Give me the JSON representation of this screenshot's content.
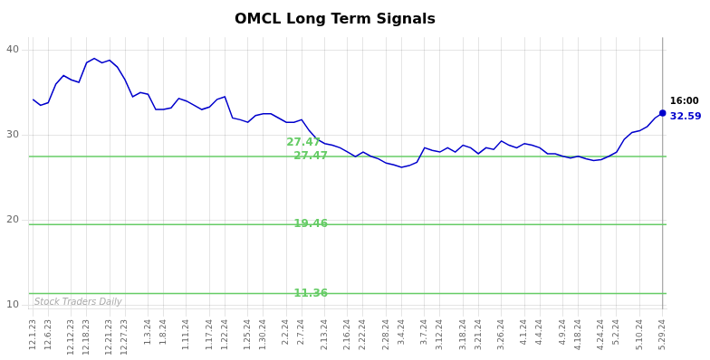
{
  "chart_data": {
    "type": "line",
    "title": "OMCL Long Term Signals",
    "categories": [
      "12.1.23",
      null,
      "12.6.23",
      null,
      null,
      "12.12.23",
      null,
      "12.18.23",
      null,
      null,
      "12.21.23",
      null,
      "12.27.23",
      null,
      null,
      "1.3.24",
      null,
      "1.8.24",
      null,
      null,
      "1.11.24",
      null,
      null,
      "1.17.24",
      null,
      "1.22.24",
      null,
      null,
      "1.25.24",
      null,
      "1.30.24",
      null,
      null,
      "2.2.24",
      null,
      "2.7.24",
      null,
      null,
      "2.13.24",
      null,
      null,
      "2.16.24",
      null,
      "2.22.24",
      null,
      null,
      "2.28.24",
      null,
      "3.4.24",
      null,
      null,
      "3.7.24",
      null,
      "3.12.24",
      null,
      null,
      "3.18.24",
      null,
      "3.21.24",
      null,
      null,
      "3.26.24",
      null,
      null,
      "4.1.24",
      null,
      "4.4.24",
      null,
      null,
      "4.9.24",
      null,
      "4.18.24",
      null,
      null,
      "4.24.24",
      null,
      "5.2.24",
      null,
      null,
      "5.10.24",
      null,
      null,
      "5.29.24"
    ],
    "series": [
      {
        "color": "#0000cc",
        "values": [
          34.2,
          33.5,
          33.8,
          36.0,
          37.0,
          36.5,
          36.2,
          38.5,
          39.0,
          38.5,
          38.8,
          38.0,
          36.5,
          34.5,
          35.0,
          34.8,
          33.0,
          33.0,
          33.2,
          34.3,
          34.0,
          33.5,
          33.0,
          33.3,
          34.2,
          34.5,
          32.0,
          31.8,
          31.5,
          32.3,
          32.5,
          32.5,
          32.0,
          31.5,
          31.5,
          31.8,
          30.5,
          29.5,
          29.0,
          28.8,
          28.5,
          28.0,
          27.47,
          28.0,
          27.5,
          27.2,
          26.7,
          26.5,
          26.2,
          26.4,
          26.8,
          28.5,
          28.2,
          28.0,
          28.5,
          28.0,
          28.8,
          28.5,
          27.8,
          28.5,
          28.3,
          29.3,
          28.8,
          28.5,
          29.0,
          28.8,
          28.5,
          27.8,
          27.8,
          27.5,
          27.3,
          27.5,
          27.2,
          27.0,
          27.1,
          27.5,
          28.0,
          29.5,
          30.3,
          30.5,
          31.0,
          32.0,
          32.59
        ]
      }
    ],
    "reference_lines": [
      {
        "value": 27.47,
        "label": "27.47",
        "color": "#66cc66"
      },
      {
        "value": 19.46,
        "label": "19.46",
        "color": "#66cc66"
      },
      {
        "value": 11.36,
        "label": "11.36",
        "color": "#66cc66"
      }
    ],
    "annotations": [
      {
        "text": "27.47",
        "x": "2.2.24",
        "y": 27.47,
        "color": "#66cc66"
      },
      {
        "text": "16:00",
        "x": "5.29.24",
        "y": 32.59,
        "color": "#000000"
      },
      {
        "text": "32.59",
        "x": "5.29.24",
        "y": 32.59,
        "color": "#0000cc"
      }
    ],
    "watermark": "Stock Traders Daily",
    "ylim": [
      9.5,
      41.5
    ],
    "yticks": [
      10,
      20,
      30,
      40
    ],
    "grid": true
  }
}
